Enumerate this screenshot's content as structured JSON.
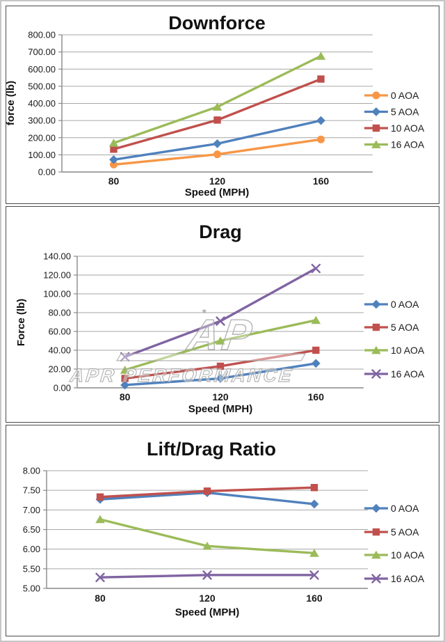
{
  "chart_data": [
    {
      "type": "line",
      "title": "Downforce",
      "ylabel": "force (lb)",
      "xlabel": "Speed (MPH)",
      "categories": [
        "80",
        "120",
        "160"
      ],
      "ylim": [
        0,
        800
      ],
      "ystep": 100,
      "tick_decimals": 2,
      "grid": true,
      "legend_position": "right",
      "series": [
        {
          "name": "0 AOA",
          "color": "#F79646",
          "marker": "circle",
          "values": [
            43,
            103,
            190
          ]
        },
        {
          "name": "5 AOA",
          "color": "#4F81BD",
          "marker": "diamond",
          "values": [
            72,
            165,
            300
          ]
        },
        {
          "name": "10 AOA",
          "color": "#C0504D",
          "marker": "square",
          "values": [
            133,
            303,
            542
          ]
        },
        {
          "name": "16 AOA",
          "color": "#9BBB59",
          "marker": "triangle",
          "values": [
            169,
            380,
            676
          ]
        }
      ]
    },
    {
      "type": "line",
      "title": "Drag",
      "ylabel": "Force (lb)",
      "xlabel": "Speed (MPH)",
      "categories": [
        "80",
        "120",
        "160"
      ],
      "ylim": [
        0,
        140
      ],
      "ystep": 20,
      "tick_decimals": 2,
      "grid": true,
      "legend_position": "right",
      "watermark": {
        "text": "APR PERFORMANCE",
        "logo": "AP",
        "star": "*"
      },
      "series": [
        {
          "name": "0 AOA",
          "color": "#4F81BD",
          "marker": "diamond",
          "values": [
            3,
            10,
            26
          ]
        },
        {
          "name": "5 AOA",
          "color": "#C0504D",
          "marker": "square",
          "values": [
            10,
            23,
            40
          ]
        },
        {
          "name": "10 AOA",
          "color": "#9BBB59",
          "marker": "triangle",
          "values": [
            19,
            50,
            72
          ]
        },
        {
          "name": "16 AOA",
          "color": "#8064A2",
          "marker": "x",
          "values": [
            33,
            71,
            127
          ]
        }
      ]
    },
    {
      "type": "line",
      "title": "Lift/Drag Ratio",
      "ylabel": "",
      "xlabel": "Speed (MPH)",
      "categories": [
        "80",
        "120",
        "160"
      ],
      "ylim": [
        5,
        8
      ],
      "ystep": 0.5,
      "tick_decimals": 2,
      "grid": true,
      "legend_position": "right",
      "series": [
        {
          "name": "0 AOA",
          "color": "#4F81BD",
          "marker": "diamond",
          "values": [
            7.27,
            7.44,
            7.15
          ]
        },
        {
          "name": "5 AOA",
          "color": "#C0504D",
          "marker": "square",
          "values": [
            7.33,
            7.48,
            7.57
          ]
        },
        {
          "name": "10 AOA",
          "color": "#9BBB59",
          "marker": "triangle",
          "values": [
            6.76,
            6.08,
            5.9
          ]
        },
        {
          "name": "16 AOA",
          "color": "#8064A2",
          "marker": "x",
          "values": [
            5.28,
            5.34,
            5.34
          ]
        }
      ]
    }
  ],
  "colors": {
    "gridline": "#A6A6A6",
    "axis": "#898989",
    "watermark": "#ACACAC"
  }
}
